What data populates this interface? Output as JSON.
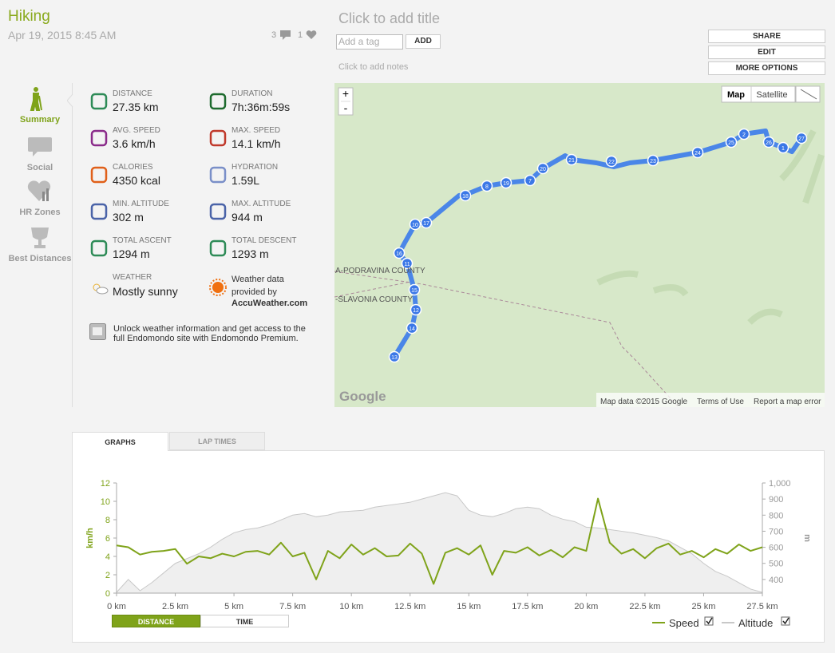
{
  "header": {
    "sport": "Hiking",
    "date": "Apr 19, 2015 8:45 AM",
    "comments": "3",
    "likes": "1",
    "title_placeholder": "Click to add title",
    "tag_placeholder": "Add a tag",
    "add_button": "ADD",
    "notes_placeholder": "Click to add notes",
    "buttons": [
      "SHARE",
      "EDIT",
      "MORE OPTIONS"
    ]
  },
  "sidebar": {
    "tabs": [
      "Summary",
      "Social",
      "HR Zones",
      "Best Distances"
    ]
  },
  "stats": [
    {
      "label": "DISTANCE",
      "value": "27.35 km"
    },
    {
      "label": "DURATION",
      "value": "7h:36m:59s"
    },
    {
      "label": "AVG. SPEED",
      "value": "3.6 km/h"
    },
    {
      "label": "MAX. SPEED",
      "value": "14.1 km/h"
    },
    {
      "label": "CALORIES",
      "value": "4350 kcal"
    },
    {
      "label": "HYDRATION",
      "value": "1.59L"
    },
    {
      "label": "MIN. ALTITUDE",
      "value": "302 m"
    },
    {
      "label": "MAX. ALTITUDE",
      "value": "944 m"
    },
    {
      "label": "TOTAL ASCENT",
      "value": "1294 m"
    },
    {
      "label": "TOTAL DESCENT",
      "value": "1293 m"
    }
  ],
  "weather": {
    "label": "WEATHER",
    "value": "Mostly sunny",
    "credit": "Weather data provided by",
    "source": "AccuWeather.com"
  },
  "premium": "Unlock weather information and get access to the full Endomondo site with Endomondo Premium.",
  "map": {
    "zoom_in": "+",
    "zoom_out": "-",
    "types": [
      "Map",
      "Satellite"
    ],
    "regions": [
      "A-PODRAVINA COUNTY",
      "-SLAVONIA COUNTY"
    ],
    "logo": "Google",
    "attribution": [
      "Map data ©2015 Google",
      "Terms of Use",
      "Report a map error"
    ],
    "markers": [
      "13",
      "14",
      "12",
      "15",
      "11",
      "16",
      "10",
      "17",
      "18",
      "8",
      "19",
      "7",
      "20",
      "21",
      "22",
      "23",
      "24",
      "25",
      "2",
      "26",
      "1",
      "27"
    ]
  },
  "tabs": [
    "GRAPHS",
    "LAP TIMES"
  ],
  "chart_data": {
    "type": "line",
    "ylabel": "km/h",
    "y2label": "m",
    "x": [
      0,
      0.5,
      1,
      1.5,
      2,
      2.5,
      3,
      3.5,
      4,
      4.5,
      5,
      5.5,
      6,
      6.5,
      7,
      7.5,
      8,
      8.5,
      9,
      9.5,
      10,
      10.5,
      11,
      11.5,
      12,
      12.5,
      13,
      13.5,
      14,
      14.5,
      15,
      15.5,
      16,
      16.5,
      17,
      17.5,
      18,
      18.5,
      19,
      19.5,
      20,
      20.5,
      21,
      21.5,
      22,
      22.5,
      23,
      23.5,
      24,
      24.5,
      25,
      25.5,
      26,
      26.5,
      27,
      27.5
    ],
    "xlim": [
      0,
      27.5
    ],
    "xticks": [
      {
        "value": 0,
        "label": "0 km"
      },
      {
        "value": 2.5,
        "label": "2.5 km"
      },
      {
        "value": 5,
        "label": "5 km"
      },
      {
        "value": 7.5,
        "label": "7.5 km"
      },
      {
        "value": 10,
        "label": "10 km"
      },
      {
        "value": 12.5,
        "label": "12.5 km"
      },
      {
        "value": 15,
        "label": "15 km"
      },
      {
        "value": 17.5,
        "label": "17.5 km"
      },
      {
        "value": 20,
        "label": "20 km"
      },
      {
        "value": 22.5,
        "label": "22.5 km"
      },
      {
        "value": 25,
        "label": "25 km"
      },
      {
        "value": 27.5,
        "label": "27.5 km"
      }
    ],
    "ylim": [
      0,
      12
    ],
    "yticks": [
      0,
      2,
      4,
      6,
      8,
      10,
      12
    ],
    "y2lim": [
      315,
      1000
    ],
    "y2ticks": [
      400,
      500,
      600,
      700,
      800,
      900,
      {
        "value": 1000,
        "label": "1,000"
      }
    ],
    "series": [
      {
        "name": "Speed",
        "color": "#7fa31a",
        "values": [
          5.2,
          5.0,
          4.2,
          4.5,
          4.6,
          4.8,
          3.2,
          4.0,
          3.8,
          4.3,
          4.0,
          4.5,
          4.6,
          4.2,
          5.5,
          4.0,
          4.4,
          1.5,
          4.6,
          3.8,
          5.3,
          4.2,
          4.9,
          4.0,
          4.1,
          5.4,
          4.3,
          1.0,
          4.4,
          4.9,
          4.2,
          5.2,
          2.0,
          4.6,
          4.4,
          5.0,
          4.1,
          4.7,
          3.9,
          5.0,
          4.6,
          10.3,
          5.5,
          4.3,
          4.8,
          3.8,
          4.9,
          5.4,
          4.2,
          4.6,
          3.9,
          4.8,
          4.3,
          5.3,
          4.6,
          5.0
        ]
      },
      {
        "name": "Altitude",
        "color": "#c8c8c8",
        "fill": "#efefef",
        "axis": "y2",
        "values": [
          320,
          400,
          330,
          380,
          440,
          500,
          530,
          560,
          600,
          650,
          690,
          710,
          720,
          740,
          770,
          800,
          810,
          790,
          800,
          820,
          825,
          830,
          850,
          860,
          870,
          880,
          900,
          920,
          940,
          920,
          830,
          800,
          790,
          810,
          840,
          850,
          840,
          800,
          775,
          760,
          725,
          720,
          710,
          700,
          690,
          675,
          660,
          640,
          600,
          560,
          500,
          450,
          420,
          380,
          340,
          320
        ]
      }
    ],
    "modes": [
      "DISTANCE",
      "TIME"
    ]
  }
}
